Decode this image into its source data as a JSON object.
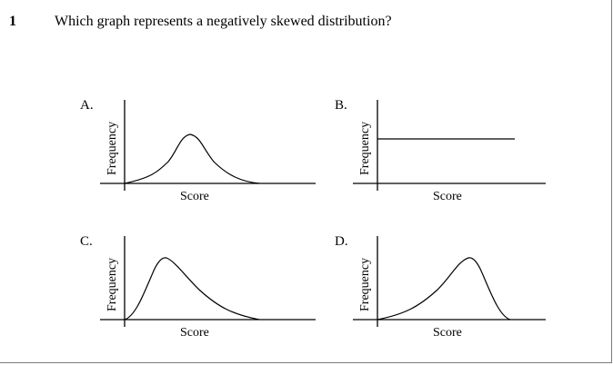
{
  "question": {
    "number": "1",
    "text": "Which graph represents a negatively skewed distribution?"
  },
  "options": [
    {
      "letter": "A.",
      "x_label": "Score",
      "y_label": "Frequency",
      "shape": "symmetric-bell"
    },
    {
      "letter": "B.",
      "x_label": "Score",
      "y_label": "Frequency",
      "shape": "uniform-flat"
    },
    {
      "letter": "C.",
      "x_label": "Score",
      "y_label": "Frequency",
      "shape": "right-skewed"
    },
    {
      "letter": "D.",
      "x_label": "Score",
      "y_label": "Frequency",
      "shape": "left-skewed"
    }
  ]
}
